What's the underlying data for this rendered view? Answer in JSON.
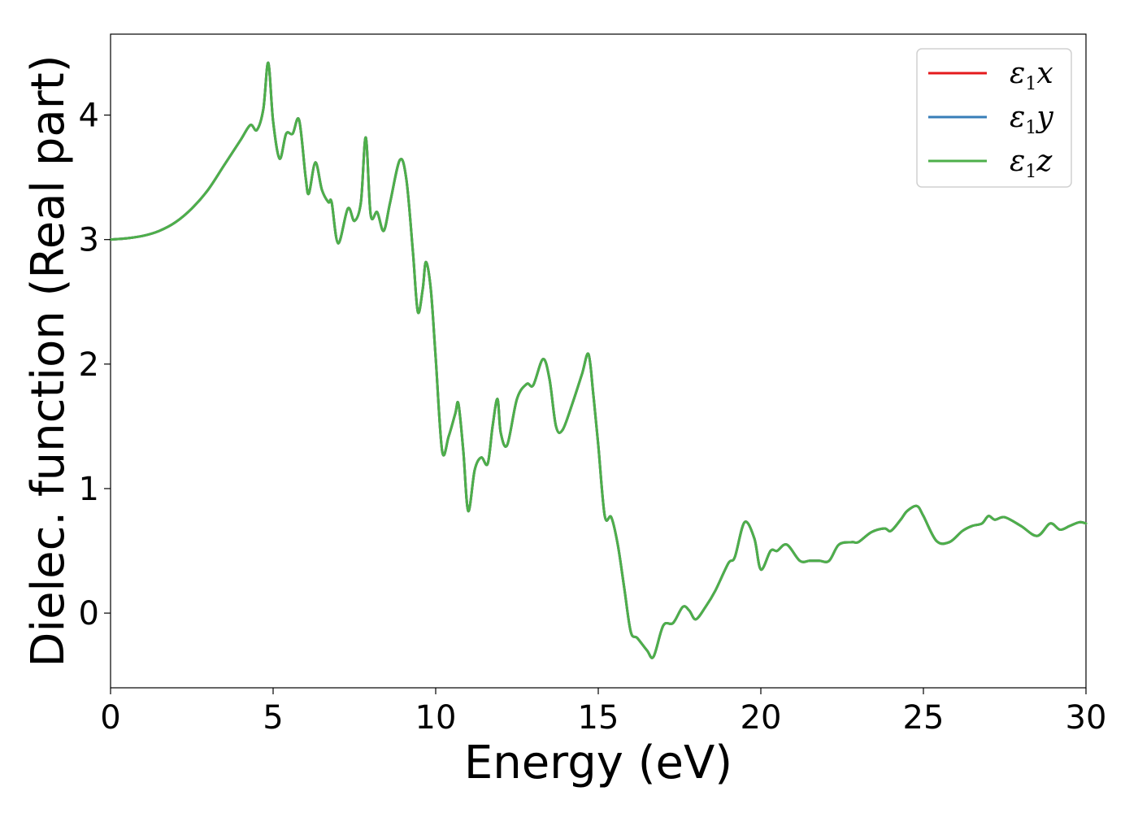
{
  "chart_data": {
    "type": "line",
    "title": "",
    "xlabel": "Energy (eV)",
    "ylabel": "Dielec. function (Real part)",
    "xlim": [
      0,
      30
    ],
    "ylim": [
      -0.6,
      4.65
    ],
    "xticks": [
      0,
      5,
      10,
      15,
      20,
      25,
      30
    ],
    "yticks": [
      0,
      1,
      2,
      3,
      4
    ],
    "grid": false,
    "legend_position": "top-right",
    "series": [
      {
        "name": "ε1x",
        "symbol": "ε",
        "sub": "1",
        "suffix": "x",
        "color": "#e41a1c"
      },
      {
        "name": "ε1y",
        "symbol": "ε",
        "sub": "1",
        "suffix": "y",
        "color": "#377eb8"
      },
      {
        "name": "ε1z",
        "symbol": "ε",
        "sub": "1",
        "suffix": "z",
        "color": "#4daf4a"
      }
    ],
    "x": [
      0,
      0.5,
      1.0,
      1.5,
      2.0,
      2.5,
      3.0,
      3.5,
      4.0,
      4.3,
      4.5,
      4.7,
      4.85,
      5.0,
      5.2,
      5.4,
      5.6,
      5.8,
      6.0,
      6.1,
      6.3,
      6.5,
      6.7,
      6.8,
      7.0,
      7.3,
      7.5,
      7.7,
      7.85,
      8.0,
      8.2,
      8.4,
      8.6,
      8.9,
      9.1,
      9.3,
      9.45,
      9.6,
      9.7,
      9.85,
      10.0,
      10.2,
      10.4,
      10.6,
      10.7,
      10.85,
      11.0,
      11.2,
      11.4,
      11.6,
      11.75,
      11.9,
      12.0,
      12.2,
      12.5,
      12.8,
      13.0,
      13.3,
      13.5,
      13.7,
      13.9,
      14.2,
      14.5,
      14.7,
      14.85,
      15.0,
      15.2,
      15.4,
      15.6,
      15.8,
      16.0,
      16.2,
      16.5,
      16.7,
      17.0,
      17.3,
      17.6,
      17.8,
      18.0,
      18.3,
      18.6,
      19.0,
      19.2,
      19.5,
      19.8,
      20.0,
      20.3,
      20.5,
      20.8,
      21.2,
      21.5,
      21.8,
      22.1,
      22.4,
      22.8,
      23.0,
      23.4,
      23.8,
      24.0,
      24.3,
      24.5,
      24.8,
      25.0,
      25.4,
      25.8,
      26.2,
      26.5,
      26.8,
      27.0,
      27.2,
      27.5,
      28.0,
      28.5,
      28.9,
      29.2,
      29.5,
      29.8,
      30.0
    ],
    "y": [
      3.0,
      3.01,
      3.03,
      3.07,
      3.14,
      3.25,
      3.4,
      3.6,
      3.8,
      3.92,
      3.88,
      4.05,
      4.42,
      3.95,
      3.65,
      3.85,
      3.85,
      3.96,
      3.5,
      3.37,
      3.62,
      3.4,
      3.3,
      3.3,
      2.97,
      3.25,
      3.15,
      3.3,
      3.82,
      3.2,
      3.22,
      3.07,
      3.3,
      3.64,
      3.48,
      2.9,
      2.42,
      2.6,
      2.82,
      2.6,
      2.05,
      1.3,
      1.42,
      1.6,
      1.68,
      1.3,
      0.82,
      1.15,
      1.25,
      1.2,
      1.5,
      1.72,
      1.45,
      1.35,
      1.72,
      1.84,
      1.83,
      2.04,
      1.88,
      1.5,
      1.47,
      1.68,
      1.92,
      2.08,
      1.75,
      1.35,
      0.78,
      0.77,
      0.55,
      0.2,
      -0.15,
      -0.2,
      -0.3,
      -0.35,
      -0.1,
      -0.08,
      0.05,
      0.02,
      -0.05,
      0.05,
      0.18,
      0.4,
      0.45,
      0.73,
      0.6,
      0.35,
      0.5,
      0.5,
      0.55,
      0.42,
      0.42,
      0.42,
      0.42,
      0.55,
      0.57,
      0.57,
      0.65,
      0.68,
      0.66,
      0.75,
      0.82,
      0.86,
      0.78,
      0.58,
      0.57,
      0.66,
      0.7,
      0.72,
      0.78,
      0.75,
      0.77,
      0.7,
      0.62,
      0.72,
      0.67,
      0.7,
      0.73,
      0.72
    ]
  }
}
